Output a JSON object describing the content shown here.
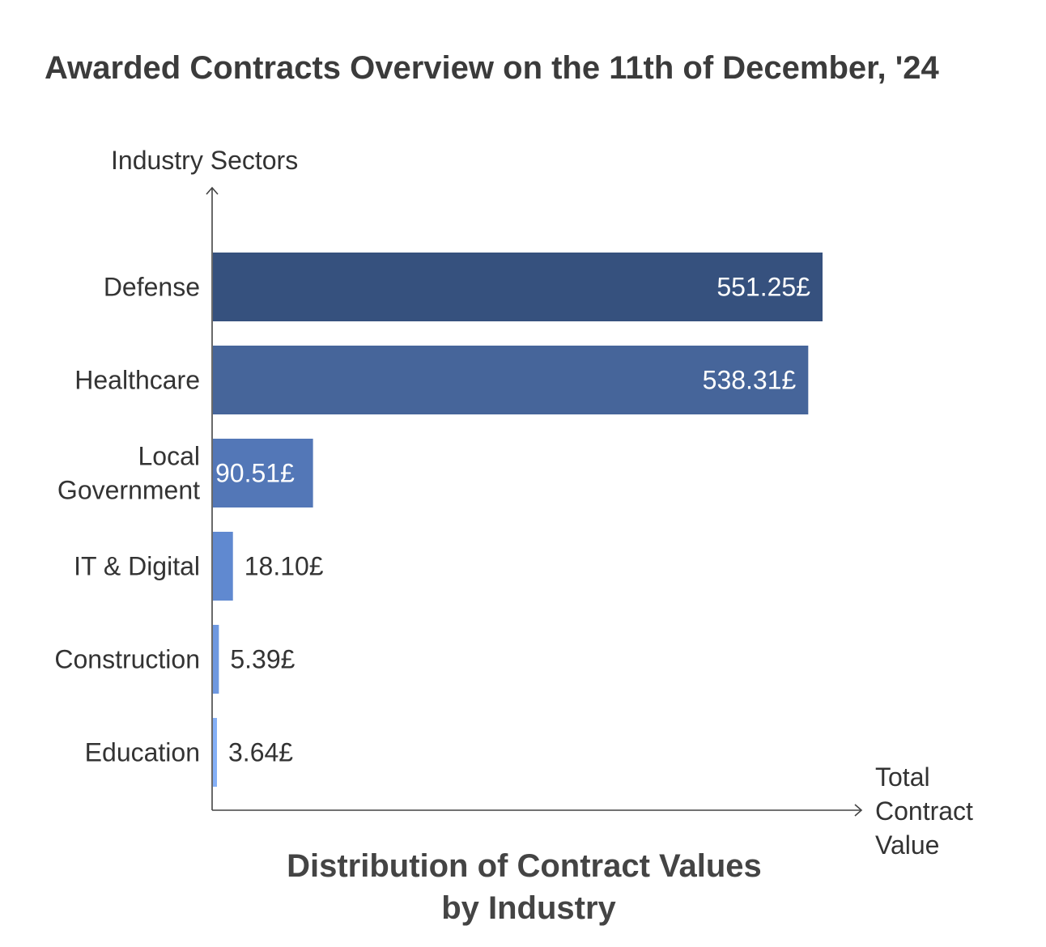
{
  "chart_data": {
    "type": "bar",
    "orientation": "horizontal",
    "title": "Awarded Contracts Overview on the 11th of December, '24",
    "subtitle_lines": [
      "Distribution of Contract Values",
      "by Industry"
    ],
    "ylabel": "Industry Sectors",
    "xlabel_lines": [
      "Total",
      "Contract",
      "Value"
    ],
    "categories": [
      [
        "Defense"
      ],
      [
        "Healthcare"
      ],
      [
        "Local",
        "Government"
      ],
      [
        "IT & Digital"
      ],
      [
        "Construction"
      ],
      [
        "Education"
      ]
    ],
    "values": [
      551.25,
      538.31,
      90.51,
      18.1,
      5.39,
      3.64
    ],
    "value_labels": [
      "551.25£",
      "538.31£",
      "90.51£",
      "18.10£",
      "5.39£",
      "3.64£"
    ],
    "colors": [
      "#36517e",
      "#46659a",
      "#5377b7",
      "#6089d0",
      "#6e98e0",
      "#85b0f7"
    ],
    "label_colors_inside": "#ffffff",
    "label_colors_outside": "#333333",
    "xlim": [
      0,
      595
    ]
  }
}
